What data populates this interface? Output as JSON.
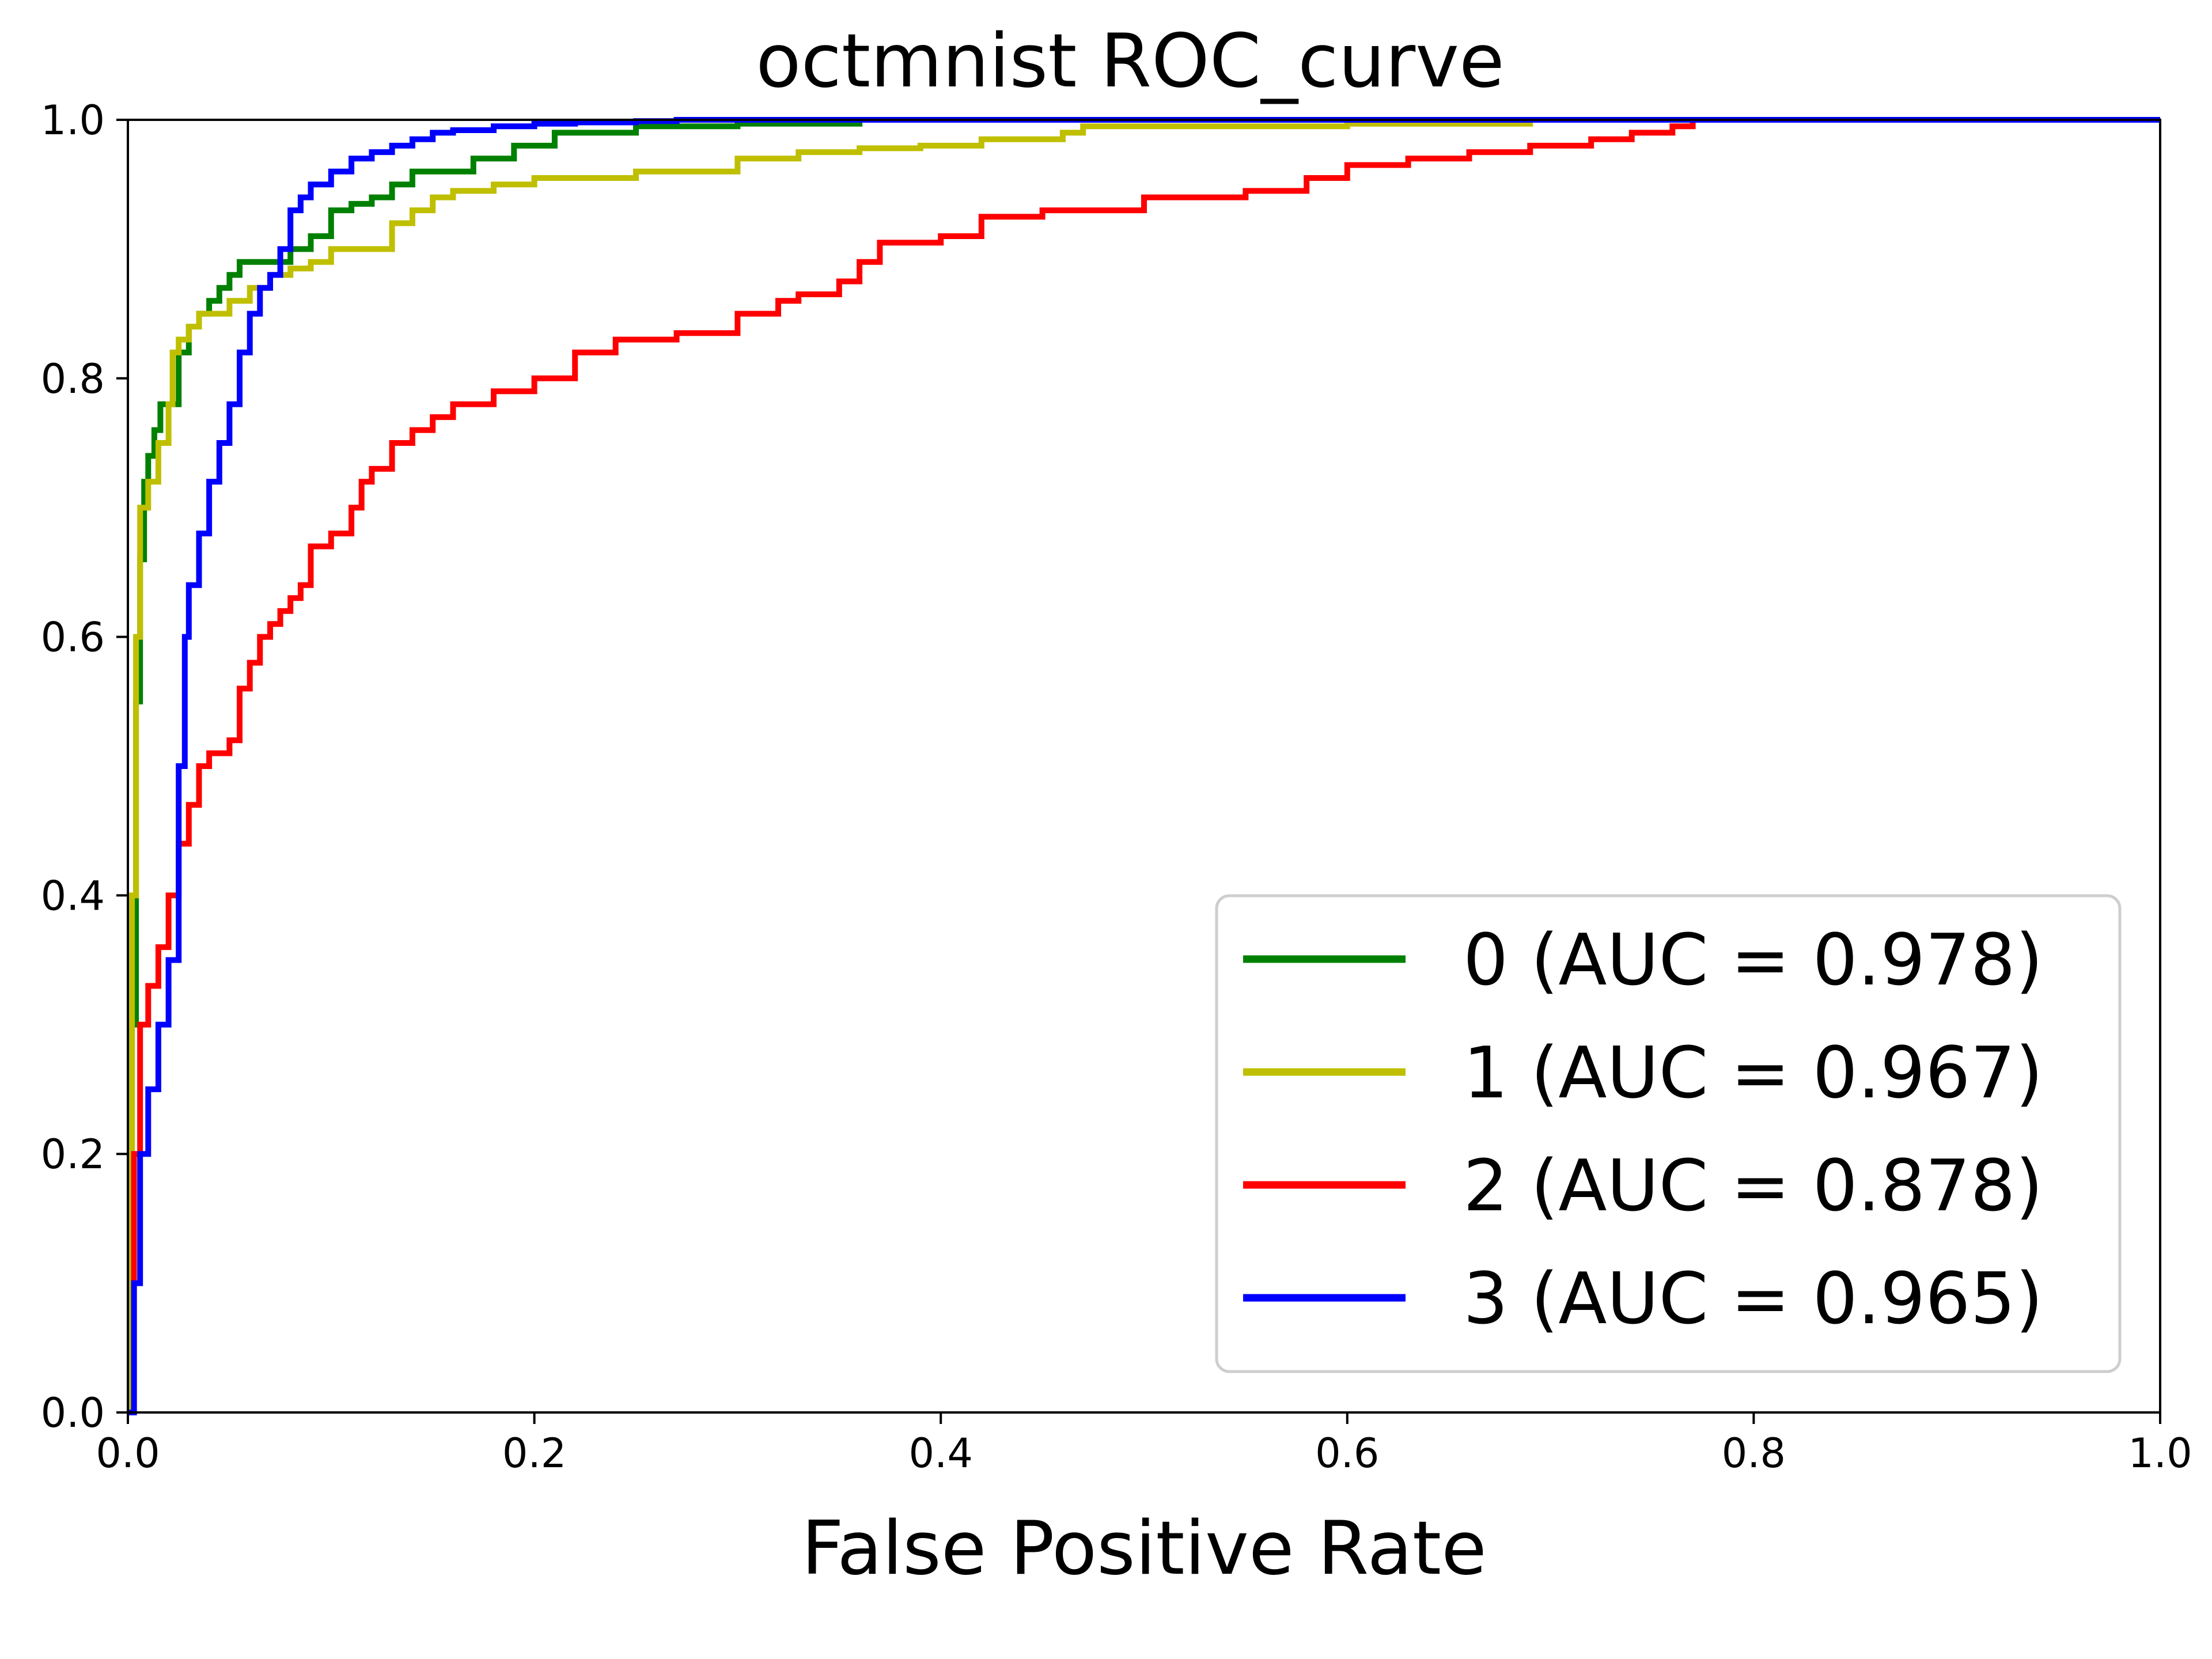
{
  "chart_data": {
    "type": "line",
    "title": "octmnist ROC_curve",
    "xlabel": "False Positive Rate",
    "ylabel": "",
    "xlim": [
      0,
      1
    ],
    "ylim": [
      0,
      1
    ],
    "x_ticks": [
      "0.0",
      "0.2",
      "0.4",
      "0.6",
      "0.8",
      "1.0"
    ],
    "y_ticks": [
      "0.0",
      "0.2",
      "0.4",
      "0.6",
      "0.8",
      "1.0"
    ],
    "grid": false,
    "legend_position": "bottom-right",
    "series": [
      {
        "name": "0 (AUC = 0.978)",
        "color": "#008000",
        "x": [
          0,
          0.002,
          0.004,
          0.006,
          0.008,
          0.01,
          0.013,
          0.016,
          0.02,
          0.025,
          0.03,
          0.035,
          0.04,
          0.045,
          0.05,
          0.055,
          0.06,
          0.07,
          0.08,
          0.09,
          0.1,
          0.11,
          0.12,
          0.13,
          0.14,
          0.15,
          0.17,
          0.19,
          0.21,
          0.22,
          0.25,
          0.3,
          0.36,
          1.0
        ],
        "y": [
          0,
          0.3,
          0.55,
          0.66,
          0.72,
          0.74,
          0.76,
          0.78,
          0.78,
          0.82,
          0.84,
          0.85,
          0.86,
          0.87,
          0.88,
          0.89,
          0.89,
          0.89,
          0.9,
          0.91,
          0.93,
          0.935,
          0.94,
          0.95,
          0.96,
          0.96,
          0.97,
          0.98,
          0.99,
          0.99,
          0.995,
          0.997,
          1.0,
          1.0
        ]
      },
      {
        "name": "1 (AUC = 0.967)",
        "color": "#bfbf00",
        "x": [
          0,
          0.002,
          0.004,
          0.006,
          0.01,
          0.015,
          0.02,
          0.022,
          0.025,
          0.03,
          0.035,
          0.04,
          0.05,
          0.06,
          0.07,
          0.08,
          0.09,
          0.1,
          0.12,
          0.13,
          0.14,
          0.15,
          0.16,
          0.18,
          0.2,
          0.22,
          0.25,
          0.28,
          0.3,
          0.33,
          0.36,
          0.39,
          0.42,
          0.46,
          0.47,
          0.5,
          0.6,
          0.69,
          1.0
        ],
        "y": [
          0,
          0.4,
          0.6,
          0.7,
          0.72,
          0.75,
          0.78,
          0.82,
          0.83,
          0.84,
          0.85,
          0.85,
          0.86,
          0.87,
          0.88,
          0.885,
          0.89,
          0.9,
          0.9,
          0.92,
          0.93,
          0.94,
          0.945,
          0.95,
          0.955,
          0.955,
          0.96,
          0.96,
          0.97,
          0.975,
          0.978,
          0.98,
          0.985,
          0.99,
          0.995,
          0.995,
          0.997,
          1.0,
          1.0
        ]
      },
      {
        "name": "2 (AUC = 0.878)",
        "color": "#ff0000",
        "x": [
          0,
          0.003,
          0.006,
          0.01,
          0.015,
          0.02,
          0.025,
          0.03,
          0.035,
          0.04,
          0.05,
          0.055,
          0.06,
          0.065,
          0.07,
          0.075,
          0.08,
          0.085,
          0.09,
          0.1,
          0.11,
          0.115,
          0.12,
          0.13,
          0.14,
          0.15,
          0.16,
          0.17,
          0.18,
          0.19,
          0.2,
          0.22,
          0.24,
          0.27,
          0.3,
          0.32,
          0.33,
          0.35,
          0.36,
          0.37,
          0.38,
          0.4,
          0.42,
          0.45,
          0.5,
          0.55,
          0.58,
          0.6,
          0.63,
          0.66,
          0.69,
          0.72,
          0.74,
          0.76,
          0.77,
          0.8,
          1.0
        ],
        "y": [
          0,
          0.2,
          0.3,
          0.33,
          0.36,
          0.4,
          0.44,
          0.47,
          0.5,
          0.51,
          0.52,
          0.56,
          0.58,
          0.6,
          0.61,
          0.62,
          0.63,
          0.64,
          0.67,
          0.68,
          0.7,
          0.72,
          0.73,
          0.75,
          0.76,
          0.77,
          0.78,
          0.78,
          0.79,
          0.79,
          0.8,
          0.82,
          0.83,
          0.835,
          0.85,
          0.86,
          0.865,
          0.875,
          0.89,
          0.905,
          0.905,
          0.91,
          0.925,
          0.93,
          0.94,
          0.945,
          0.955,
          0.965,
          0.97,
          0.975,
          0.98,
          0.985,
          0.99,
          0.995,
          1.0,
          1.0,
          1.0
        ]
      },
      {
        "name": "3 (AUC = 0.965)",
        "color": "#0000ff",
        "x": [
          0,
          0.003,
          0.006,
          0.01,
          0.015,
          0.02,
          0.025,
          0.028,
          0.03,
          0.035,
          0.04,
          0.045,
          0.05,
          0.055,
          0.06,
          0.065,
          0.07,
          0.075,
          0.08,
          0.085,
          0.09,
          0.1,
          0.11,
          0.12,
          0.13,
          0.14,
          0.15,
          0.16,
          0.18,
          0.2,
          0.22,
          0.25,
          0.27,
          1.0
        ],
        "y": [
          0,
          0.1,
          0.2,
          0.25,
          0.3,
          0.35,
          0.5,
          0.6,
          0.64,
          0.68,
          0.72,
          0.75,
          0.78,
          0.82,
          0.85,
          0.87,
          0.88,
          0.9,
          0.93,
          0.94,
          0.95,
          0.96,
          0.97,
          0.975,
          0.98,
          0.985,
          0.99,
          0.992,
          0.995,
          0.997,
          0.998,
          0.999,
          1.0,
          1.0
        ]
      }
    ]
  }
}
